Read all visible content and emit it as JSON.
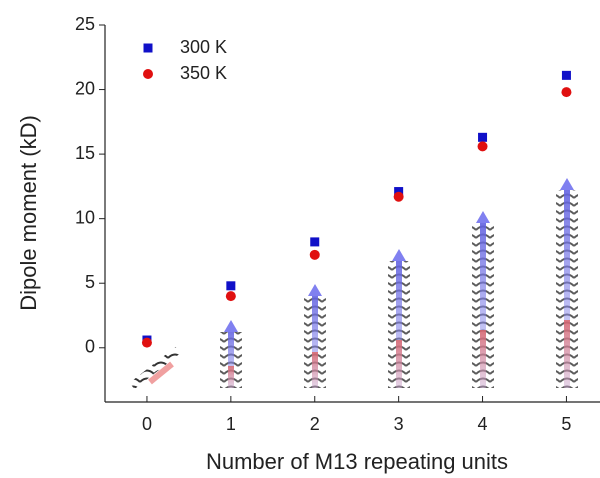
{
  "chart_data": {
    "type": "scatter",
    "x_label": "Number of M13 repeating units",
    "y_label": "Dipole moment (kD)",
    "x": [
      0,
      1,
      2,
      3,
      4,
      5
    ],
    "series": [
      {
        "name": "300 K",
        "color": "#1010c8",
        "marker": "square",
        "values": [
          0.6,
          4.8,
          8.2,
          12.1,
          16.3,
          21.1
        ]
      },
      {
        "name": "350 K",
        "color": "#e01010",
        "marker": "circle",
        "values": [
          0.4,
          4.0,
          7.2,
          11.7,
          15.6,
          19.8
        ]
      }
    ],
    "xlim": [
      -0.5,
      5.4
    ],
    "xticks": [
      0,
      1,
      2,
      3,
      4,
      5
    ],
    "ylim": [
      -4.2,
      25
    ],
    "yticks": [
      0,
      5,
      10,
      15,
      20,
      25
    ],
    "legend": "upper-left",
    "grid": false
  }
}
